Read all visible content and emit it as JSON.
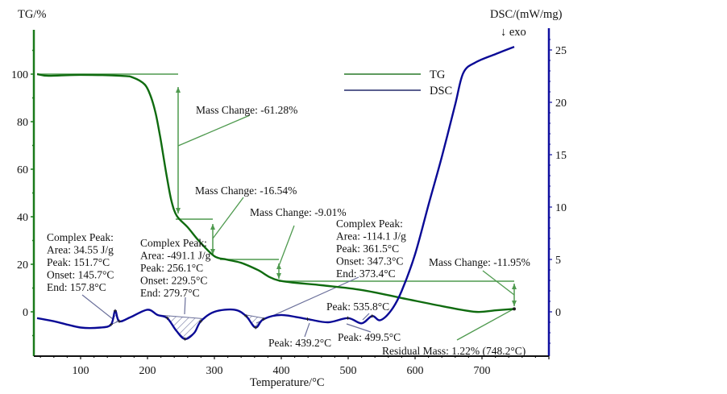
{
  "chart_data": {
    "type": "line",
    "title": "",
    "xlabel": "Temperature/°C",
    "ylabel_left": "TG/%",
    "ylabel_right": "DSC/(mW/mg)",
    "exo_marker": "↓ exo",
    "xlim": [
      35,
      760
    ],
    "ylim_left": [
      -18.6,
      118
    ],
    "ylim_right": [
      -3.6,
      27
    ],
    "x_ticks": [
      100,
      200,
      300,
      400,
      500,
      600,
      700
    ],
    "y_left_ticks": [
      0,
      20,
      40,
      60,
      80,
      100
    ],
    "y_right_ticks": [
      0,
      5,
      10,
      15,
      20,
      25
    ],
    "grid": false,
    "legend": {
      "position": "top-center",
      "entries": [
        {
          "name": "TG",
          "color": "#5e9a5e"
        },
        {
          "name": "DSC",
          "color": "#5a5f8f"
        }
      ]
    },
    "colors": {
      "tg": "#0f6b0f",
      "dsc": "#0a0a96",
      "tg_axis": "#1a7a1a",
      "dsc_axis": "#1010a0",
      "annotation_green": "#4f9a4f",
      "annotation_blue": "#6a6f9a"
    },
    "series": [
      {
        "name": "TG",
        "axis": "left",
        "x": [
          35,
          52,
          100,
          160,
          178,
          196,
          205,
          212,
          218,
          223,
          229,
          236,
          244,
          260,
          278,
          300,
          318,
          340,
          365,
          396,
          460,
          520,
          580,
          640,
          690,
          720,
          748.2
        ],
        "y": [
          100,
          99.3,
          99.7,
          99.3,
          98.6,
          95.6,
          90.5,
          83.7,
          75.2,
          66.8,
          56.6,
          46.4,
          40.3,
          35.6,
          29.5,
          23.4,
          22.0,
          20.6,
          17.6,
          13.2,
          11.2,
          9.2,
          5.8,
          2.4,
          0,
          0.6,
          1.22
        ]
      },
      {
        "name": "DSC",
        "axis": "right",
        "x": [
          35,
          60,
          100,
          130,
          145.7,
          151.7,
          157.8,
          175,
          200,
          215,
          229.5,
          243,
          256.1,
          270,
          279.7,
          300,
          330,
          347.3,
          361.5,
          373.4,
          400,
          439.2,
          470,
          499.5,
          520,
          535.8,
          548,
          565,
          580,
          600,
          620,
          640,
          660,
          672,
          690,
          720,
          748.2
        ],
        "y": [
          -0.6,
          -0.9,
          -1.5,
          -1.5,
          -1.2,
          0.1,
          -0.9,
          -0.5,
          0.2,
          -0.3,
          -0.6,
          -1.8,
          -2.6,
          -2.0,
          -0.9,
          0.0,
          0.2,
          -0.4,
          -1.5,
          -0.7,
          -0.3,
          -0.7,
          -1.0,
          -0.6,
          -1.1,
          -0.4,
          -0.8,
          0.2,
          2.0,
          5.5,
          10.2,
          14.8,
          19.8,
          22.8,
          23.8,
          24.6,
          25.3
        ]
      }
    ],
    "mass_changes": [
      {
        "label": "Mass Change: -61.28%",
        "from_pct": 100,
        "to_pct": 38.72,
        "at_x": 245
      },
      {
        "label": "Mass Change: -16.54%",
        "from_pct": 38.72,
        "to_pct": 22.18,
        "at_x": 297
      },
      {
        "label": "Mass Change: -9.01%",
        "from_pct": 22.18,
        "to_pct": 13.17,
        "at_x": 396
      },
      {
        "label": "Mass Change: -11.95%",
        "from_pct": 13.17,
        "to_pct": 1.22,
        "at_x": 748.2
      }
    ],
    "residual_mass": {
      "label": "Residual Mass: 1.22% (748.2°C)",
      "value_pct": 1.22,
      "temperature": 748.2
    },
    "dsc_peaks": [
      {
        "type": "complex",
        "lines": [
          "Complex Peak:",
          "Area: 34.55 J/g",
          "Peak: 151.7°C",
          "Onset: 145.7°C",
          "End: 157.8°C"
        ],
        "area": 34.55,
        "peak": 151.7,
        "onset": 145.7,
        "end": 157.8
      },
      {
        "type": "complex",
        "lines": [
          "Complex Peak:",
          "Area: -491.1 J/g",
          "Peak: 256.1°C",
          "Onset: 229.5°C",
          "End: 279.7°C"
        ],
        "area": -491.1,
        "peak": 256.1,
        "onset": 229.5,
        "end": 279.7
      },
      {
        "type": "complex",
        "lines": [
          "Complex Peak:",
          "Area: -114.1 J/g",
          "Peak: 361.5°C",
          "Onset: 347.3°C",
          "End: 373.4°C"
        ],
        "area": -114.1,
        "peak": 361.5,
        "onset": 347.3,
        "end": 373.4
      },
      {
        "type": "peak",
        "lines": [
          "Peak: 439.2°C"
        ],
        "peak": 439.2
      },
      {
        "type": "peak",
        "lines": [
          "Peak: 499.5°C"
        ],
        "peak": 499.5
      },
      {
        "type": "peak",
        "lines": [
          "Peak: 535.8°C"
        ],
        "peak": 535.8
      }
    ]
  }
}
